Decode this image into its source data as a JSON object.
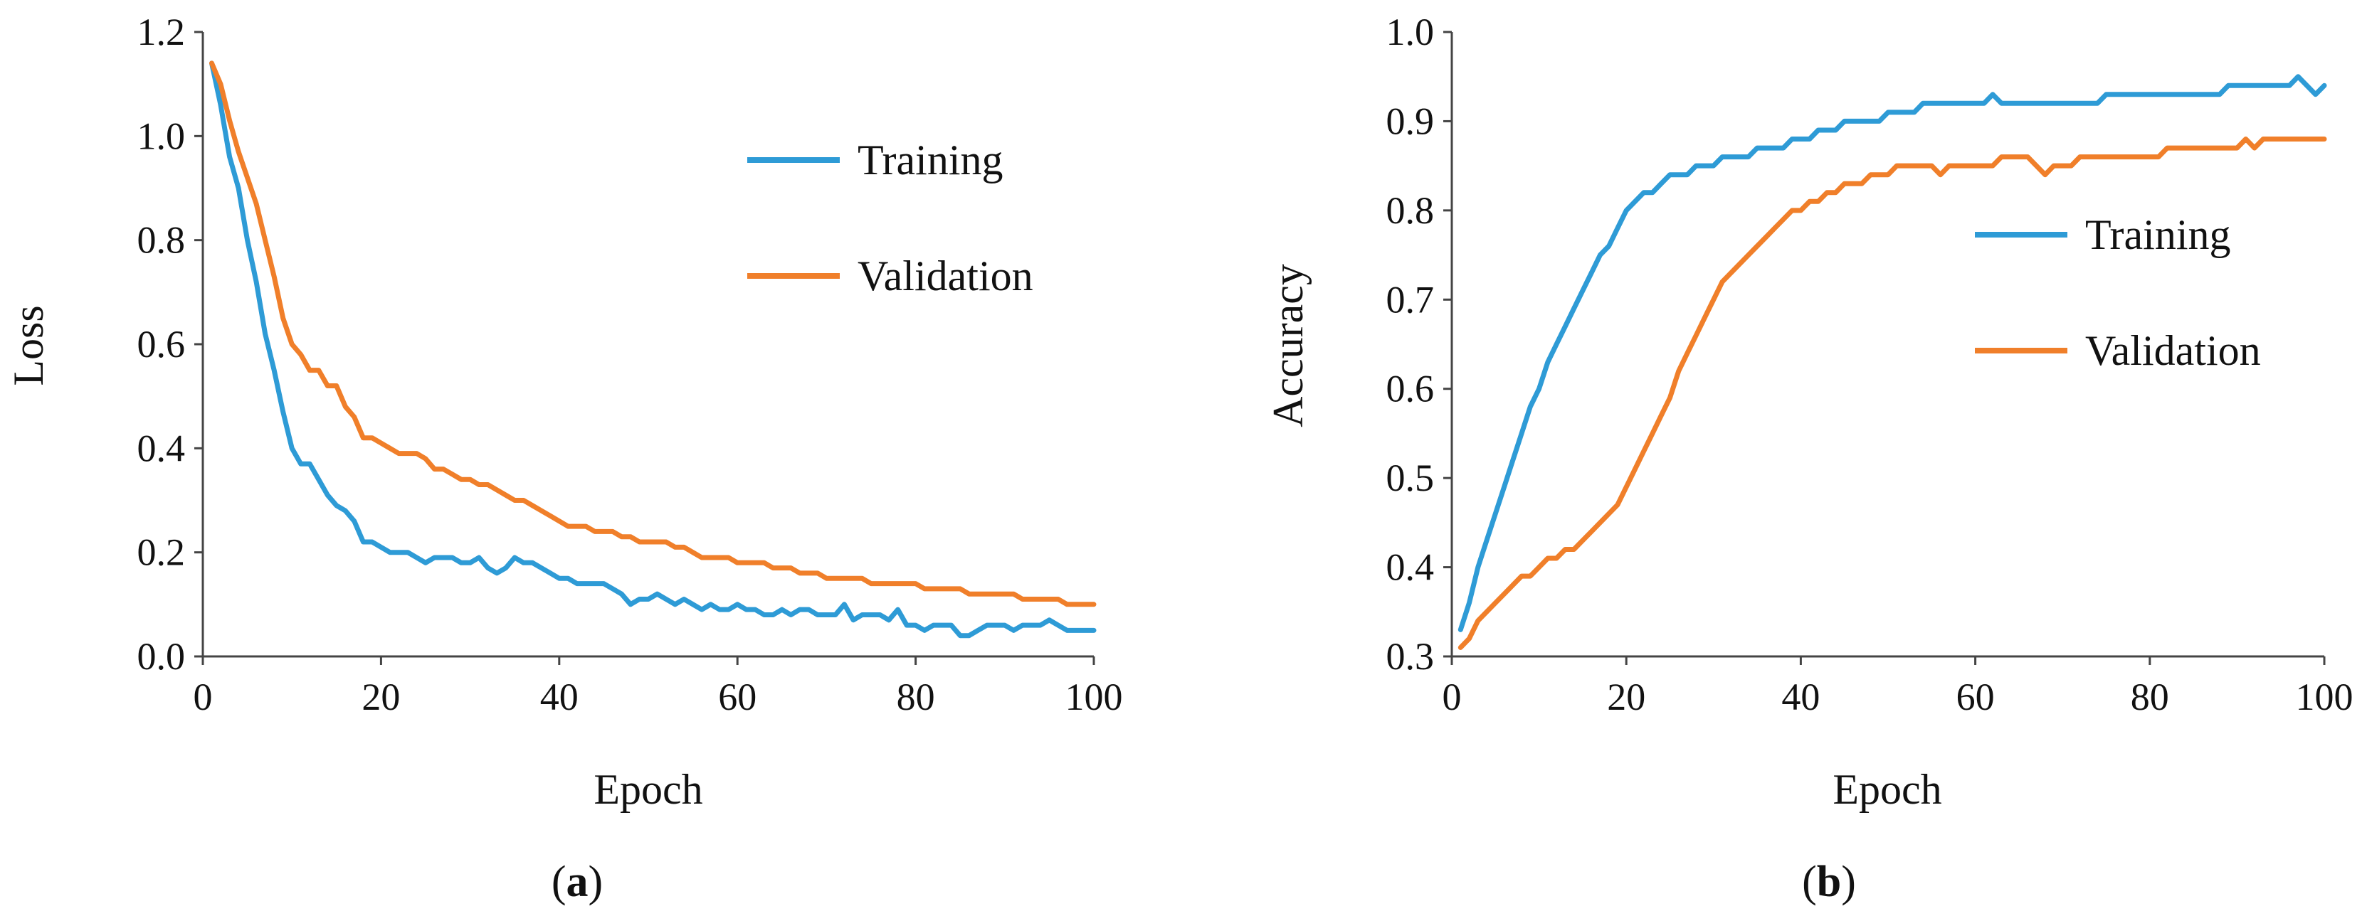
{
  "colors": {
    "training": "#2E9BD6",
    "validation": "#F07F2A"
  },
  "chart_data": [
    {
      "type": "line",
      "caption_letter": "a",
      "xlabel": "Epoch",
      "ylabel": "Loss",
      "xlim": [
        0,
        100
      ],
      "ylim": [
        0,
        1.2
      ],
      "xticks": [
        "0",
        "20",
        "40",
        "60",
        "80",
        "100"
      ],
      "yticks": [
        "0.0",
        "0.2",
        "0.4",
        "0.6",
        "0.8",
        "1.0",
        "1.2"
      ],
      "xtick_values": [
        0,
        20,
        40,
        60,
        80,
        100
      ],
      "ytick_values": [
        0,
        0.2,
        0.4,
        0.6,
        0.8,
        1.0,
        1.2
      ],
      "legend_position": "top-right",
      "series": [
        {
          "name": "Training",
          "color_key": "training",
          "x": [
            1,
            2,
            3,
            4,
            5,
            6,
            7,
            8,
            9,
            10,
            11,
            12,
            13,
            14,
            15,
            16,
            17,
            18,
            19,
            20,
            21,
            22,
            23,
            24,
            25,
            26,
            27,
            28,
            29,
            30,
            31,
            32,
            33,
            34,
            35,
            36,
            37,
            38,
            39,
            40,
            41,
            42,
            43,
            44,
            45,
            46,
            47,
            48,
            49,
            50,
            51,
            52,
            53,
            54,
            55,
            56,
            57,
            58,
            59,
            60,
            61,
            62,
            63,
            64,
            65,
            66,
            67,
            68,
            69,
            70,
            71,
            72,
            73,
            74,
            75,
            76,
            77,
            78,
            79,
            80,
            81,
            82,
            83,
            84,
            85,
            86,
            87,
            88,
            89,
            90,
            91,
            92,
            93,
            94,
            95,
            96,
            97,
            98,
            99,
            100
          ],
          "values": [
            1.14,
            1.06,
            0.96,
            0.9,
            0.8,
            0.72,
            0.62,
            0.55,
            0.47,
            0.4,
            0.37,
            0.37,
            0.34,
            0.31,
            0.29,
            0.28,
            0.26,
            0.22,
            0.22,
            0.21,
            0.2,
            0.2,
            0.2,
            0.19,
            0.18,
            0.19,
            0.19,
            0.19,
            0.18,
            0.18,
            0.19,
            0.17,
            0.16,
            0.17,
            0.19,
            0.18,
            0.18,
            0.17,
            0.16,
            0.15,
            0.15,
            0.14,
            0.14,
            0.14,
            0.14,
            0.13,
            0.12,
            0.1,
            0.11,
            0.11,
            0.12,
            0.11,
            0.1,
            0.11,
            0.1,
            0.09,
            0.1,
            0.09,
            0.09,
            0.1,
            0.09,
            0.09,
            0.08,
            0.08,
            0.09,
            0.08,
            0.09,
            0.09,
            0.08,
            0.08,
            0.08,
            0.1,
            0.07,
            0.08,
            0.08,
            0.08,
            0.07,
            0.09,
            0.06,
            0.06,
            0.05,
            0.06,
            0.06,
            0.06,
            0.04,
            0.04,
            0.05,
            0.06,
            0.06,
            0.06,
            0.05,
            0.06,
            0.06,
            0.06,
            0.07,
            0.06,
            0.05,
            0.05,
            0.05,
            0.05
          ]
        },
        {
          "name": "Validation",
          "color_key": "validation",
          "x": [
            1,
            2,
            3,
            4,
            5,
            6,
            7,
            8,
            9,
            10,
            11,
            12,
            13,
            14,
            15,
            16,
            17,
            18,
            19,
            20,
            21,
            22,
            23,
            24,
            25,
            26,
            27,
            28,
            29,
            30,
            31,
            32,
            33,
            34,
            35,
            36,
            37,
            38,
            39,
            40,
            41,
            42,
            43,
            44,
            45,
            46,
            47,
            48,
            49,
            50,
            51,
            52,
            53,
            54,
            55,
            56,
            57,
            58,
            59,
            60,
            61,
            62,
            63,
            64,
            65,
            66,
            67,
            68,
            69,
            70,
            71,
            72,
            73,
            74,
            75,
            76,
            77,
            78,
            79,
            80,
            81,
            82,
            83,
            84,
            85,
            86,
            87,
            88,
            89,
            90,
            91,
            92,
            93,
            94,
            95,
            96,
            97,
            98,
            99,
            100
          ],
          "values": [
            1.14,
            1.1,
            1.03,
            0.97,
            0.92,
            0.87,
            0.8,
            0.73,
            0.65,
            0.6,
            0.58,
            0.55,
            0.55,
            0.52,
            0.52,
            0.48,
            0.46,
            0.42,
            0.42,
            0.41,
            0.4,
            0.39,
            0.39,
            0.39,
            0.38,
            0.36,
            0.36,
            0.35,
            0.34,
            0.34,
            0.33,
            0.33,
            0.32,
            0.31,
            0.3,
            0.3,
            0.29,
            0.28,
            0.27,
            0.26,
            0.25,
            0.25,
            0.25,
            0.24,
            0.24,
            0.24,
            0.23,
            0.23,
            0.22,
            0.22,
            0.22,
            0.22,
            0.21,
            0.21,
            0.2,
            0.19,
            0.19,
            0.19,
            0.19,
            0.18,
            0.18,
            0.18,
            0.18,
            0.17,
            0.17,
            0.17,
            0.16,
            0.16,
            0.16,
            0.15,
            0.15,
            0.15,
            0.15,
            0.15,
            0.14,
            0.14,
            0.14,
            0.14,
            0.14,
            0.14,
            0.13,
            0.13,
            0.13,
            0.13,
            0.13,
            0.12,
            0.12,
            0.12,
            0.12,
            0.12,
            0.12,
            0.11,
            0.11,
            0.11,
            0.11,
            0.11,
            0.1,
            0.1,
            0.1,
            0.1
          ]
        }
      ]
    },
    {
      "type": "line",
      "caption_letter": "b",
      "xlabel": "Epoch",
      "ylabel": "Accuracy",
      "xlim": [
        0,
        100
      ],
      "ylim": [
        0.3,
        1.0
      ],
      "xticks": [
        "0",
        "20",
        "40",
        "60",
        "80",
        "100"
      ],
      "yticks": [
        "0.3",
        "0.4",
        "0.5",
        "0.6",
        "0.7",
        "0.8",
        "0.9",
        "1.0"
      ],
      "xtick_values": [
        0,
        20,
        40,
        60,
        80,
        100
      ],
      "ytick_values": [
        0.3,
        0.4,
        0.5,
        0.6,
        0.7,
        0.8,
        0.9,
        1.0
      ],
      "legend_position": "right",
      "series": [
        {
          "name": "Training",
          "color_key": "training",
          "x": [
            1,
            2,
            3,
            4,
            5,
            6,
            7,
            8,
            9,
            10,
            11,
            12,
            13,
            14,
            15,
            16,
            17,
            18,
            19,
            20,
            21,
            22,
            23,
            24,
            25,
            26,
            27,
            28,
            29,
            30,
            31,
            32,
            33,
            34,
            35,
            36,
            37,
            38,
            39,
            40,
            41,
            42,
            43,
            44,
            45,
            46,
            47,
            48,
            49,
            50,
            51,
            52,
            53,
            54,
            55,
            56,
            57,
            58,
            59,
            60,
            61,
            62,
            63,
            64,
            65,
            66,
            67,
            68,
            69,
            70,
            71,
            72,
            73,
            74,
            75,
            76,
            77,
            78,
            79,
            80,
            81,
            82,
            83,
            84,
            85,
            86,
            87,
            88,
            89,
            90,
            91,
            92,
            93,
            94,
            95,
            96,
            97,
            98,
            99,
            100
          ],
          "values": [
            0.33,
            0.36,
            0.4,
            0.43,
            0.46,
            0.49,
            0.52,
            0.55,
            0.58,
            0.6,
            0.63,
            0.65,
            0.67,
            0.69,
            0.71,
            0.73,
            0.75,
            0.76,
            0.78,
            0.8,
            0.81,
            0.82,
            0.82,
            0.83,
            0.84,
            0.84,
            0.84,
            0.85,
            0.85,
            0.85,
            0.86,
            0.86,
            0.86,
            0.86,
            0.87,
            0.87,
            0.87,
            0.87,
            0.88,
            0.88,
            0.88,
            0.89,
            0.89,
            0.89,
            0.9,
            0.9,
            0.9,
            0.9,
            0.9,
            0.91,
            0.91,
            0.91,
            0.91,
            0.92,
            0.92,
            0.92,
            0.92,
            0.92,
            0.92,
            0.92,
            0.92,
            0.93,
            0.92,
            0.92,
            0.92,
            0.92,
            0.92,
            0.92,
            0.92,
            0.92,
            0.92,
            0.92,
            0.92,
            0.92,
            0.93,
            0.93,
            0.93,
            0.93,
            0.93,
            0.93,
            0.93,
            0.93,
            0.93,
            0.93,
            0.93,
            0.93,
            0.93,
            0.93,
            0.94,
            0.94,
            0.94,
            0.94,
            0.94,
            0.94,
            0.94,
            0.94,
            0.95,
            0.94,
            0.93,
            0.94
          ]
        },
        {
          "name": "Validation",
          "color_key": "validation",
          "x": [
            1,
            2,
            3,
            4,
            5,
            6,
            7,
            8,
            9,
            10,
            11,
            12,
            13,
            14,
            15,
            16,
            17,
            18,
            19,
            20,
            21,
            22,
            23,
            24,
            25,
            26,
            27,
            28,
            29,
            30,
            31,
            32,
            33,
            34,
            35,
            36,
            37,
            38,
            39,
            40,
            41,
            42,
            43,
            44,
            45,
            46,
            47,
            48,
            49,
            50,
            51,
            52,
            53,
            54,
            55,
            56,
            57,
            58,
            59,
            60,
            61,
            62,
            63,
            64,
            65,
            66,
            67,
            68,
            69,
            70,
            71,
            72,
            73,
            74,
            75,
            76,
            77,
            78,
            79,
            80,
            81,
            82,
            83,
            84,
            85,
            86,
            87,
            88,
            89,
            90,
            91,
            92,
            93,
            94,
            95,
            96,
            97,
            98,
            99,
            100
          ],
          "values": [
            0.31,
            0.32,
            0.34,
            0.35,
            0.36,
            0.37,
            0.38,
            0.39,
            0.39,
            0.4,
            0.41,
            0.41,
            0.42,
            0.42,
            0.43,
            0.44,
            0.45,
            0.46,
            0.47,
            0.49,
            0.51,
            0.53,
            0.55,
            0.57,
            0.59,
            0.62,
            0.64,
            0.66,
            0.68,
            0.7,
            0.72,
            0.73,
            0.74,
            0.75,
            0.76,
            0.77,
            0.78,
            0.79,
            0.8,
            0.8,
            0.81,
            0.81,
            0.82,
            0.82,
            0.83,
            0.83,
            0.83,
            0.84,
            0.84,
            0.84,
            0.85,
            0.85,
            0.85,
            0.85,
            0.85,
            0.84,
            0.85,
            0.85,
            0.85,
            0.85,
            0.85,
            0.85,
            0.86,
            0.86,
            0.86,
            0.86,
            0.85,
            0.84,
            0.85,
            0.85,
            0.85,
            0.86,
            0.86,
            0.86,
            0.86,
            0.86,
            0.86,
            0.86,
            0.86,
            0.86,
            0.86,
            0.87,
            0.87,
            0.87,
            0.87,
            0.87,
            0.87,
            0.87,
            0.87,
            0.87,
            0.88,
            0.87,
            0.88,
            0.88,
            0.88,
            0.88,
            0.88,
            0.88,
            0.88,
            0.88
          ]
        }
      ]
    }
  ]
}
